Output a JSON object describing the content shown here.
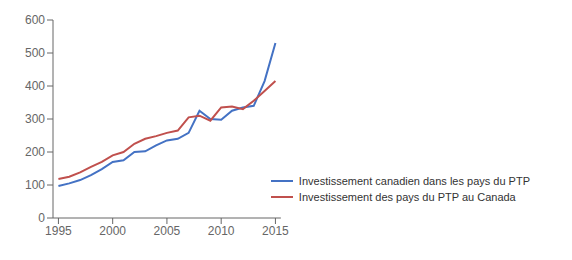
{
  "chart_data": {
    "type": "line",
    "x": [
      1995,
      1996,
      1997,
      1998,
      1999,
      2000,
      2001,
      2002,
      2003,
      2004,
      2005,
      2006,
      2007,
      2008,
      2009,
      2010,
      2011,
      2012,
      2013,
      2014,
      2015
    ],
    "series": [
      {
        "name": "Investissement canadien dans les pays du PTP",
        "color": "#4472C4",
        "values": [
          97,
          105,
          115,
          130,
          148,
          170,
          175,
          200,
          202,
          220,
          235,
          240,
          258,
          325,
          300,
          298,
          325,
          335,
          340,
          415,
          530
        ]
      },
      {
        "name": "Investissement des pays du PTP au Canada",
        "color": "#C0504D",
        "values": [
          118,
          125,
          138,
          155,
          170,
          190,
          200,
          225,
          240,
          248,
          258,
          265,
          305,
          310,
          295,
          335,
          338,
          330,
          355,
          385,
          415
        ]
      }
    ],
    "xlim": [
      1994.5,
      2015.5
    ],
    "xticks": [
      1995,
      2000,
      2005,
      2010,
      2015
    ],
    "ylim": [
      0,
      600
    ],
    "yticks": [
      0,
      100,
      200,
      300,
      400,
      500,
      600
    ],
    "grid": false,
    "legend": "lower right"
  }
}
